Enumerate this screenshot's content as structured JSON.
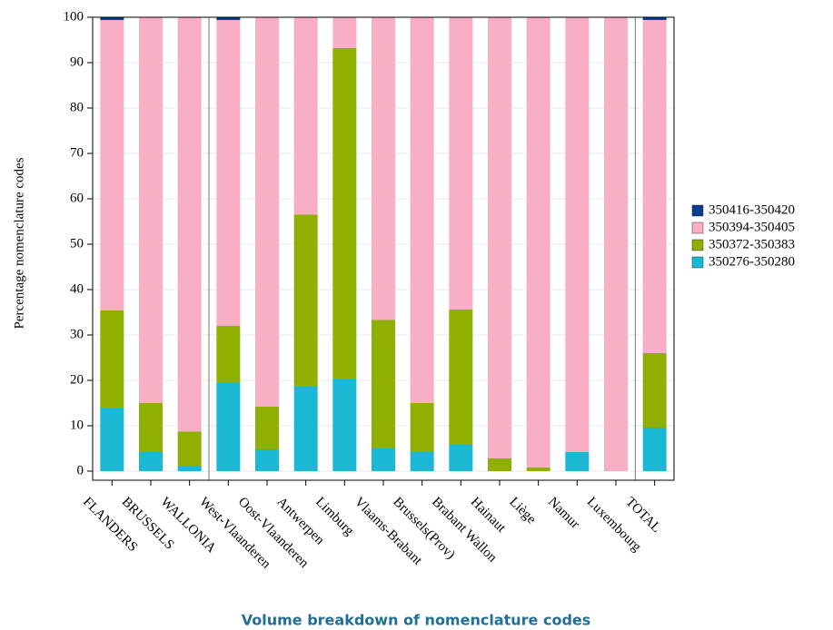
{
  "chart_data": {
    "type": "stacked_bar",
    "title": "Volume breakdown of nomenclature codes",
    "y_label": "Percentage nomenclature codes",
    "categories": [
      "FLANDERS",
      "BRUSSELS",
      "WALLONIA",
      "West-Vlaanderen",
      "Oost-Vlaanderen",
      "Antwerpen",
      "Limburg",
      "Vlaams-Brabant",
      "Brussels(Prov)",
      "Brabant Wallon",
      "Hainaut",
      "Liège",
      "Namur",
      "Luxembourg",
      "TOTAL"
    ],
    "series": [
      {
        "name": "350276-350280",
        "color": "#1bb8d6",
        "values": [
          14,
          4.2,
          1.2,
          19.5,
          4.8,
          18.6,
          20.4,
          5,
          4.2,
          5.8,
          0,
          0,
          4.2,
          0,
          9.6
        ]
      },
      {
        "name": "350372-350383",
        "color": "#8fb000",
        "values": [
          21.4,
          10.8,
          7.5,
          12.5,
          9.4,
          37.9,
          72.8,
          28.3,
          10.8,
          29.8,
          2.8,
          0.8,
          0,
          0,
          16.4
        ]
      },
      {
        "name": "350394-350405",
        "color": "#f9afc3",
        "values": [
          64,
          85,
          91.3,
          67.4,
          85.8,
          43.5,
          6.8,
          66.7,
          85,
          64.4,
          97.2,
          99.2,
          95.8,
          100,
          73.4
        ]
      },
      {
        "name": "350416-350420",
        "color": "#0a3d8f",
        "values": [
          0.6,
          0,
          0,
          0.6,
          0,
          0,
          0,
          0,
          0,
          0,
          0,
          0,
          0,
          0,
          0.6
        ]
      }
    ],
    "ylim": [
      -2,
      100
    ],
    "yticks": [
      0,
      10,
      20,
      30,
      40,
      50,
      60,
      70,
      80,
      90,
      100
    ],
    "grid": true,
    "legend": "right"
  }
}
